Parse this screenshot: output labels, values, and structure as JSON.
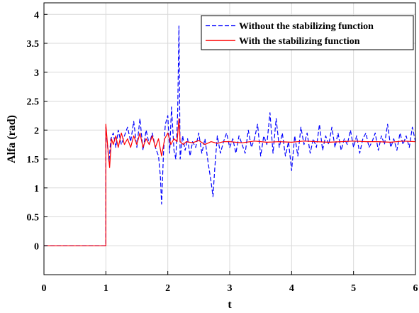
{
  "chart_data": {
    "type": "line",
    "title": "",
    "xlabel": "t",
    "ylabel": "Alfa (rad)",
    "xlim": [
      0,
      6
    ],
    "ylim": [
      -0.5,
      4.2
    ],
    "xticks": [
      "0",
      "1",
      "2",
      "3",
      "4",
      "5",
      "6"
    ],
    "yticks": [
      "0",
      "0.5",
      "1",
      "1.5",
      "2",
      "2.5",
      "3",
      "3.5",
      "4"
    ],
    "grid": true,
    "legend_position": "top-right",
    "series": [
      {
        "name": "Without the stabilizing function",
        "color": "#0000ff",
        "line_style": "dashed",
        "x": [
          0,
          1,
          1.0,
          1.02,
          1.05,
          1.08,
          1.12,
          1.16,
          1.2,
          1.25,
          1.3,
          1.35,
          1.4,
          1.45,
          1.5,
          1.55,
          1.6,
          1.65,
          1.7,
          1.75,
          1.8,
          1.85,
          1.88,
          1.9,
          1.93,
          1.96,
          2.0,
          2.03,
          2.06,
          2.1,
          2.13,
          2.16,
          2.18,
          2.2,
          2.24,
          2.28,
          2.32,
          2.36,
          2.4,
          2.45,
          2.5,
          2.55,
          2.6,
          2.65,
          2.7,
          2.73,
          2.76,
          2.8,
          2.85,
          2.9,
          2.95,
          3.0,
          3.05,
          3.1,
          3.15,
          3.2,
          3.25,
          3.3,
          3.35,
          3.4,
          3.45,
          3.5,
          3.55,
          3.6,
          3.65,
          3.7,
          3.75,
          3.8,
          3.85,
          3.9,
          3.95,
          4.0,
          4.05,
          4.1,
          4.15,
          4.2,
          4.25,
          4.3,
          4.35,
          4.4,
          4.45,
          4.5,
          4.55,
          4.6,
          4.65,
          4.7,
          4.75,
          4.8,
          4.85,
          4.9,
          4.95,
          5.0,
          5.05,
          5.1,
          5.15,
          5.2,
          5.25,
          5.3,
          5.35,
          5.4,
          5.45,
          5.5,
          5.55,
          5.6,
          5.65,
          5.7,
          5.75,
          5.8,
          5.85,
          5.9,
          5.95,
          6.0
        ],
        "y": [
          0,
          0,
          2.05,
          1.8,
          1.45,
          1.85,
          1.95,
          1.7,
          2.0,
          1.75,
          1.9,
          2.05,
          1.8,
          2.15,
          1.7,
          2.2,
          1.65,
          2.0,
          1.75,
          1.95,
          1.7,
          1.55,
          1.2,
          0.72,
          1.6,
          2.1,
          2.25,
          1.6,
          2.4,
          1.65,
          1.5,
          2.3,
          3.8,
          1.5,
          1.9,
          1.65,
          1.85,
          1.55,
          1.8,
          1.7,
          1.95,
          1.6,
          1.85,
          1.45,
          1.1,
          0.85,
          1.35,
          1.9,
          1.6,
          1.8,
          1.95,
          1.7,
          1.85,
          1.6,
          1.9,
          1.75,
          1.6,
          2.0,
          1.7,
          1.85,
          2.1,
          1.55,
          1.9,
          1.75,
          2.3,
          1.6,
          2.2,
          1.7,
          1.95,
          1.55,
          1.8,
          1.3,
          1.9,
          1.55,
          2.05,
          1.75,
          1.95,
          1.6,
          1.85,
          1.7,
          2.1,
          1.65,
          1.9,
          1.75,
          2.05,
          1.7,
          1.95,
          1.65,
          1.85,
          1.75,
          2.0,
          1.7,
          1.9,
          1.6,
          1.85,
          1.95,
          1.7,
          1.8,
          1.95,
          1.65,
          1.9,
          1.75,
          2.1,
          1.7,
          1.85,
          1.65,
          1.95,
          1.75,
          1.9,
          1.7,
          2.05,
          1.8
        ]
      },
      {
        "name": "With the stabilizing function",
        "color": "#ff0000",
        "line_style": "solid",
        "x": [
          0,
          1,
          1.0,
          1.03,
          1.06,
          1.09,
          1.12,
          1.16,
          1.2,
          1.25,
          1.3,
          1.35,
          1.4,
          1.45,
          1.5,
          1.55,
          1.6,
          1.65,
          1.7,
          1.75,
          1.8,
          1.85,
          1.9,
          1.95,
          2.0,
          2.05,
          2.1,
          2.15,
          2.18,
          2.2,
          2.25,
          2.3,
          2.4,
          2.5,
          2.6,
          2.7,
          2.8,
          2.9,
          3.0,
          3.2,
          3.4,
          3.6,
          3.8,
          4.0,
          4.2,
          4.4,
          4.6,
          4.8,
          5.0,
          5.2,
          5.4,
          5.6,
          5.8,
          6.0
        ],
        "y": [
          0,
          0,
          2.1,
          1.7,
          1.35,
          1.85,
          1.75,
          1.9,
          1.7,
          1.95,
          1.75,
          1.85,
          1.7,
          1.9,
          1.75,
          1.95,
          1.7,
          1.85,
          1.75,
          1.9,
          1.7,
          1.85,
          1.55,
          1.85,
          1.95,
          1.75,
          1.85,
          1.8,
          2.2,
          1.8,
          1.75,
          1.8,
          1.78,
          1.82,
          1.75,
          1.8,
          1.77,
          1.8,
          1.8,
          1.78,
          1.81,
          1.79,
          1.8,
          1.79,
          1.81,
          1.8,
          1.79,
          1.8,
          1.81,
          1.8,
          1.8,
          1.79,
          1.81,
          1.8
        ]
      }
    ]
  }
}
